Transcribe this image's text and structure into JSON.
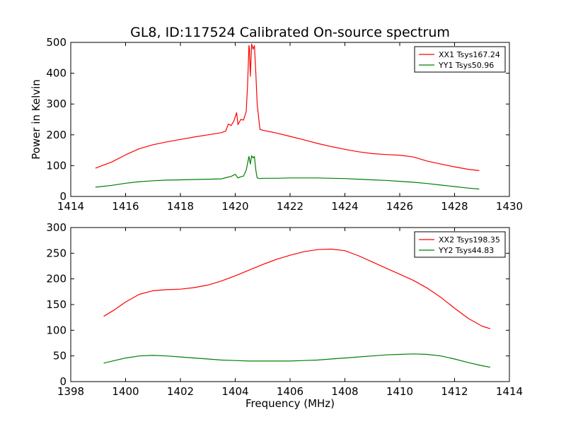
{
  "chart_data": [
    {
      "type": "line",
      "title": "GL8, ID:117524 Calibrated On-source spectrum",
      "xlabel": "",
      "ylabel": "Power in Kelvin",
      "xlim": [
        1414,
        1430
      ],
      "ylim": [
        0,
        500
      ],
      "xticks": [
        "1414",
        "1416",
        "1418",
        "1420",
        "1422",
        "1424",
        "1426",
        "1428",
        "1430"
      ],
      "yticks": [
        "0",
        "100",
        "200",
        "300",
        "400",
        "500"
      ],
      "legend_position": "top-right",
      "series": [
        {
          "name": "XX1 Tsys167.24",
          "color": "#ff0000",
          "x": [
            1414.9,
            1415.5,
            1416.0,
            1416.5,
            1417.0,
            1417.5,
            1418.0,
            1418.5,
            1419.0,
            1419.5,
            1419.65,
            1419.75,
            1419.85,
            1419.95,
            1420.05,
            1420.1,
            1420.2,
            1420.3,
            1420.4,
            1420.45,
            1420.5,
            1420.52,
            1420.55,
            1420.6,
            1420.65,
            1420.7,
            1420.75,
            1420.8,
            1420.9,
            1421.0,
            1421.5,
            1422.0,
            1422.5,
            1423.0,
            1423.5,
            1424.0,
            1424.5,
            1425.0,
            1425.5,
            1426.0,
            1426.5,
            1427.0,
            1427.5,
            1428.0,
            1428.5,
            1428.9
          ],
          "y": [
            92,
            112,
            135,
            155,
            168,
            177,
            185,
            193,
            200,
            207,
            212,
            235,
            230,
            245,
            272,
            233,
            250,
            248,
            275,
            360,
            490,
            480,
            390,
            495,
            478,
            490,
            400,
            300,
            218,
            215,
            206,
            195,
            184,
            172,
            162,
            153,
            145,
            139,
            136,
            134,
            128,
            115,
            105,
            96,
            88,
            84
          ]
        },
        {
          "name": "YY1 Tsys50.96",
          "color": "#008000",
          "x": [
            1414.9,
            1415.5,
            1416.0,
            1416.5,
            1417.0,
            1417.5,
            1418.0,
            1418.5,
            1419.0,
            1419.5,
            1419.7,
            1419.85,
            1420.0,
            1420.1,
            1420.2,
            1420.3,
            1420.4,
            1420.5,
            1420.55,
            1420.6,
            1420.65,
            1420.7,
            1420.75,
            1420.8,
            1420.9,
            1421.0,
            1421.5,
            1422.0,
            1422.5,
            1423.0,
            1423.5,
            1424.0,
            1424.5,
            1425.0,
            1425.5,
            1426.0,
            1426.5,
            1427.0,
            1427.5,
            1428.0,
            1428.5,
            1428.9
          ],
          "y": [
            30,
            36,
            43,
            48,
            51,
            53,
            54,
            55,
            56,
            57,
            62,
            65,
            72,
            60,
            64,
            66,
            85,
            130,
            105,
            132,
            125,
            130,
            85,
            60,
            58,
            59,
            59,
            60,
            60,
            60,
            59,
            58,
            56,
            54,
            52,
            49,
            46,
            42,
            37,
            32,
            27,
            24
          ]
        }
      ]
    },
    {
      "type": "line",
      "title": "",
      "xlabel": "Frequency (MHz)",
      "ylabel": "",
      "xlim": [
        1398,
        1414
      ],
      "ylim": [
        0,
        300
      ],
      "xticks": [
        "1398",
        "1400",
        "1402",
        "1404",
        "1406",
        "1408",
        "1410",
        "1412",
        "1414"
      ],
      "yticks": [
        "0",
        "50",
        "100",
        "150",
        "200",
        "250",
        "300"
      ],
      "legend_position": "top-right",
      "series": [
        {
          "name": "XX2 Tsys198.35",
          "color": "#ff0000",
          "x": [
            1399.2,
            1399.6,
            1400.0,
            1400.5,
            1401.0,
            1401.5,
            1402.0,
            1402.5,
            1403.0,
            1403.5,
            1404.0,
            1404.5,
            1405.0,
            1405.5,
            1406.0,
            1406.5,
            1407.0,
            1407.5,
            1408.0,
            1408.5,
            1409.0,
            1409.5,
            1410.0,
            1410.5,
            1411.0,
            1411.5,
            1412.0,
            1412.5,
            1413.0,
            1413.3
          ],
          "y": [
            127,
            140,
            155,
            170,
            177,
            179,
            180,
            183,
            188,
            196,
            206,
            217,
            228,
            238,
            246,
            253,
            257,
            258,
            255,
            245,
            233,
            221,
            209,
            197,
            182,
            164,
            143,
            123,
            108,
            103
          ]
        },
        {
          "name": "YY2 Tsys44.83",
          "color": "#008000",
          "x": [
            1399.2,
            1399.6,
            1400.0,
            1400.5,
            1401.0,
            1401.5,
            1402.0,
            1402.5,
            1403.0,
            1403.5,
            1404.0,
            1404.5,
            1405.0,
            1405.5,
            1406.0,
            1406.5,
            1407.0,
            1407.5,
            1408.0,
            1408.5,
            1409.0,
            1409.5,
            1410.0,
            1410.5,
            1411.0,
            1411.5,
            1412.0,
            1412.5,
            1413.0,
            1413.3
          ],
          "y": [
            36,
            41,
            46,
            50,
            51,
            50,
            48,
            46,
            44,
            42,
            41,
            40,
            40,
            40,
            40,
            41,
            42,
            44,
            46,
            48,
            50,
            52,
            53,
            54,
            53,
            50,
            44,
            37,
            31,
            28
          ]
        }
      ]
    }
  ]
}
